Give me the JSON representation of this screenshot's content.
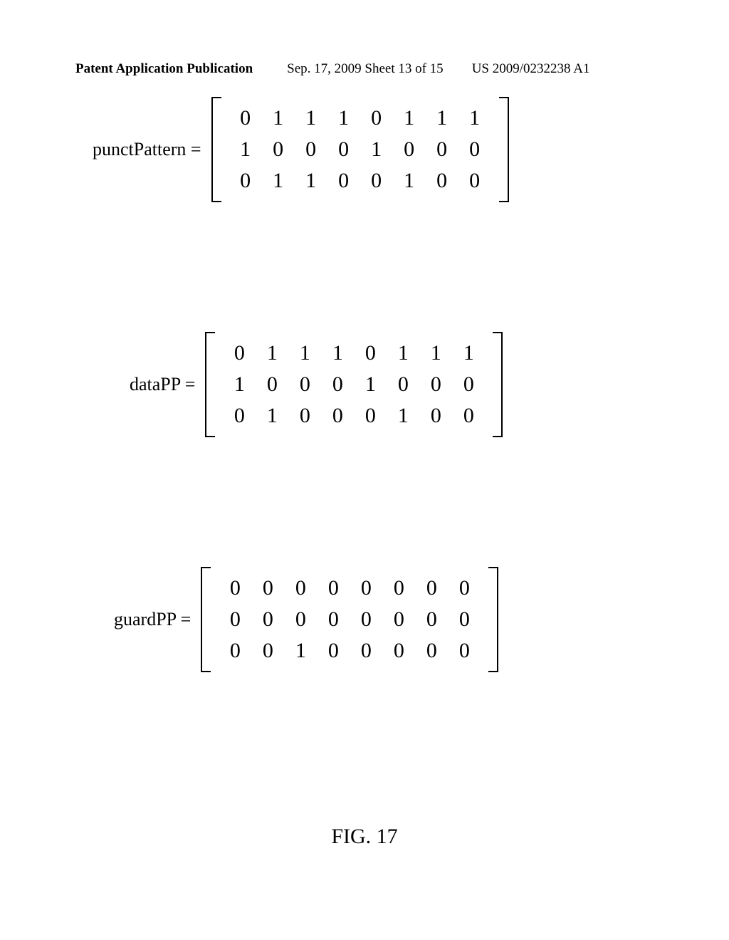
{
  "header": {
    "left": "Patent Application Publication",
    "mid": "Sep. 17, 2009  Sheet 13 of 15",
    "right": "US 2009/0232238 A1"
  },
  "matrices": [
    {
      "label": "punctPattern =",
      "rows": [
        [
          "0",
          "1",
          "1",
          "1",
          "0",
          "1",
          "1",
          "1"
        ],
        [
          "1",
          "0",
          "0",
          "0",
          "1",
          "0",
          "0",
          "0"
        ],
        [
          "0",
          "1",
          "1",
          "0",
          "0",
          "1",
          "0",
          "0"
        ]
      ]
    },
    {
      "label": "dataPP =",
      "rows": [
        [
          "0",
          "1",
          "1",
          "1",
          "0",
          "1",
          "1",
          "1"
        ],
        [
          "1",
          "0",
          "0",
          "0",
          "1",
          "0",
          "0",
          "0"
        ],
        [
          "0",
          "1",
          "0",
          "0",
          "0",
          "1",
          "0",
          "0"
        ]
      ]
    },
    {
      "label": "guardPP =",
      "rows": [
        [
          "0",
          "0",
          "0",
          "0",
          "0",
          "0",
          "0",
          "0"
        ],
        [
          "0",
          "0",
          "0",
          "0",
          "0",
          "0",
          "0",
          "0"
        ],
        [
          "0",
          "0",
          "1",
          "0",
          "0",
          "0",
          "0",
          "0"
        ]
      ]
    }
  ],
  "figure": "FIG. 17",
  "style": {
    "background": "#ffffff",
    "text_color": "#000000",
    "header_font_size": 19,
    "label_font_size": 26,
    "cell_font_size": 30,
    "figure_font_size": 30,
    "matrix_cols": 8,
    "matrix_rows": 3,
    "col_gap": 26,
    "row_gap": 8
  }
}
